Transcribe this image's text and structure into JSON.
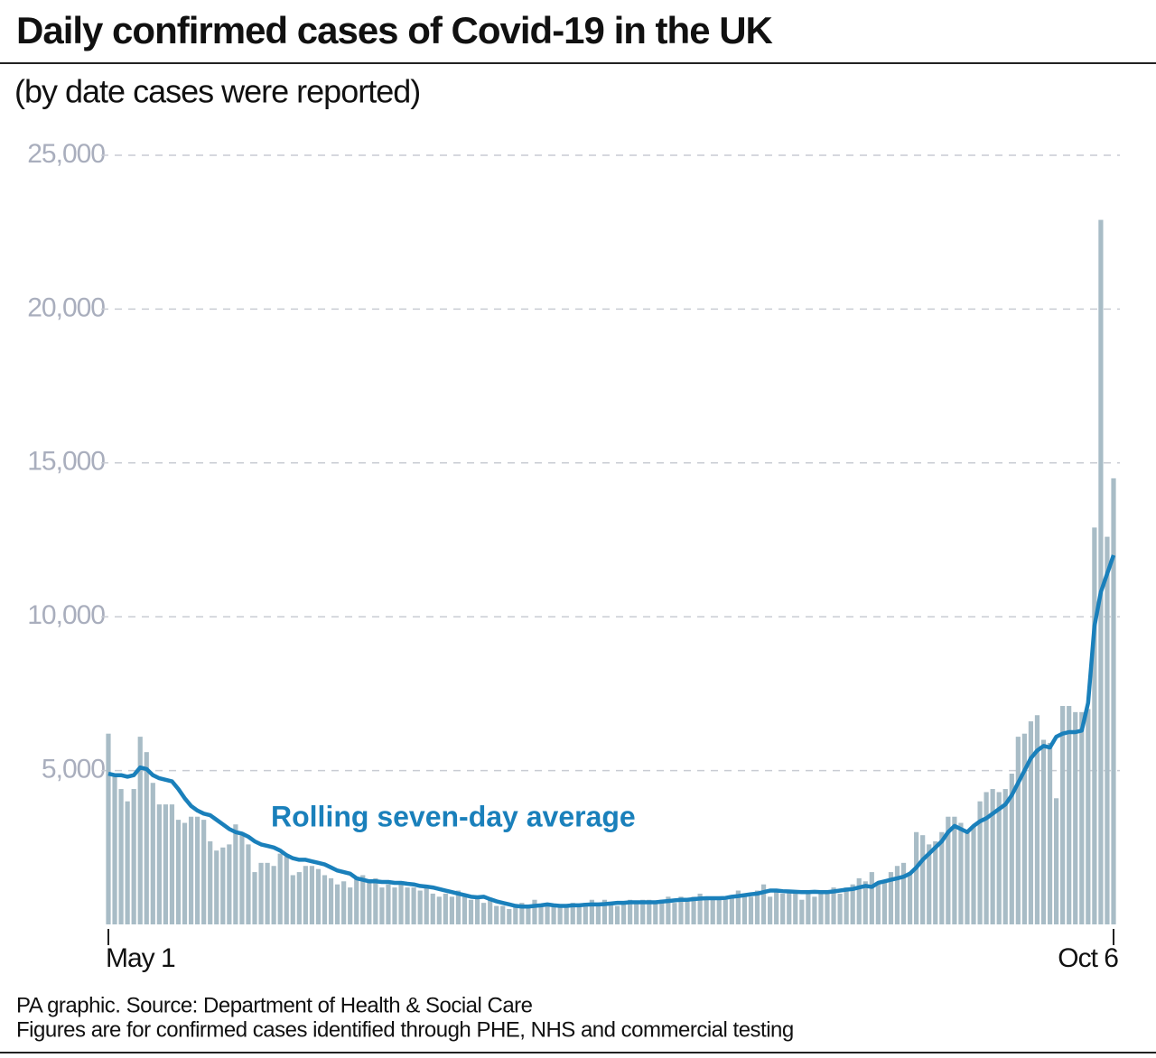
{
  "chart_data": {
    "type": "bar",
    "title": "Daily confirmed cases of Covid-19 in the UK",
    "subtitle": "(by date cases were reported)",
    "source": "PA graphic. Source: Department of Health & Social Care",
    "note": "Figures are for confirmed cases identified through PHE, NHS and commercial testing",
    "categories": [
      "May 1",
      null,
      null,
      null,
      null,
      null,
      null,
      null,
      null,
      null,
      null,
      null,
      null,
      null,
      null,
      null,
      null,
      null,
      null,
      null,
      null,
      null,
      null,
      null,
      null,
      null,
      null,
      null,
      null,
      null,
      null,
      null,
      null,
      null,
      null,
      null,
      null,
      null,
      null,
      null,
      null,
      null,
      null,
      null,
      null,
      null,
      null,
      null,
      null,
      null,
      null,
      null,
      null,
      null,
      null,
      null,
      null,
      null,
      null,
      null,
      null,
      null,
      null,
      null,
      null,
      null,
      null,
      null,
      null,
      null,
      null,
      null,
      null,
      null,
      null,
      null,
      null,
      null,
      null,
      null,
      null,
      null,
      null,
      null,
      null,
      null,
      null,
      null,
      null,
      null,
      null,
      null,
      null,
      null,
      null,
      null,
      null,
      null,
      null,
      null,
      null,
      null,
      null,
      null,
      null,
      null,
      null,
      null,
      null,
      null,
      null,
      null,
      null,
      null,
      null,
      null,
      null,
      null,
      null,
      null,
      null,
      null,
      null,
      null,
      null,
      null,
      null,
      null,
      null,
      null,
      null,
      null,
      null,
      null,
      null,
      null,
      null,
      null,
      null,
      null,
      null,
      null,
      null,
      null,
      null,
      null,
      null,
      null,
      null,
      null,
      null,
      null,
      null,
      null,
      null,
      null,
      null,
      null,
      "Oct 6"
    ],
    "series": [
      {
        "type": "bar",
        "color": "#a8bcc6",
        "values": [
          6200,
          4800,
          4400,
          4000,
          4400,
          6100,
          5600,
          4600,
          3900,
          3900,
          3900,
          3400,
          3300,
          3500,
          3500,
          3400,
          2700,
          2400,
          2500,
          2600,
          3250,
          2900,
          2600,
          1700,
          2000,
          2000,
          1900,
          2300,
          2200,
          1600,
          1700,
          1900,
          1900,
          1800,
          1600,
          1500,
          1300,
          1400,
          1200,
          1500,
          1600,
          1400,
          1500,
          1200,
          1300,
          1200,
          1300,
          1200,
          1200,
          1100,
          1200,
          1000,
          900,
          1000,
          900,
          1100,
          900,
          800,
          900,
          700,
          800,
          600,
          600,
          500,
          600,
          700,
          600,
          800,
          600,
          700,
          600,
          600,
          600,
          700,
          600,
          700,
          800,
          700,
          800,
          700,
          600,
          700,
          800,
          700,
          800,
          800,
          700,
          800,
          900,
          700,
          900,
          800,
          900,
          1000,
          900,
          900,
          900,
          800,
          900,
          1100,
          1000,
          900,
          1100,
          1300,
          900,
          1100,
          1000,
          1100,
          1000,
          800,
          1100,
          900,
          1000,
          1100,
          1200,
          1000,
          1200,
          1300,
          1500,
          1400,
          1700,
          1300,
          1400,
          1700,
          1900,
          2000,
          1700,
          3000,
          2900,
          2600,
          2700,
          3000,
          3500,
          3500,
          3300,
          3000,
          3200,
          4000,
          4300,
          4400,
          4300,
          4400,
          4900,
          6100,
          6200,
          6600,
          6800,
          6000,
          5900,
          4100,
          7100,
          7100,
          6900,
          6900,
          7000,
          12900,
          22900,
          12600,
          14500
        ]
      },
      {
        "name": "Rolling seven-day average",
        "type": "line",
        "color": "#1a80bb",
        "values": [
          4900,
          4850,
          4850,
          4800,
          4850,
          5100,
          5050,
          4850,
          4750,
          4700,
          4650,
          4400,
          4100,
          3850,
          3700,
          3600,
          3550,
          3400,
          3250,
          3100,
          3000,
          2950,
          2850,
          2700,
          2600,
          2550,
          2500,
          2400,
          2250,
          2150,
          2100,
          2100,
          2050,
          2000,
          1950,
          1850,
          1750,
          1700,
          1650,
          1500,
          1450,
          1400,
          1400,
          1380,
          1380,
          1350,
          1350,
          1320,
          1300,
          1250,
          1230,
          1200,
          1150,
          1100,
          1050,
          1000,
          950,
          900,
          880,
          900,
          820,
          750,
          700,
          650,
          600,
          580,
          580,
          600,
          620,
          650,
          620,
          600,
          600,
          620,
          620,
          640,
          650,
          650,
          660,
          680,
          700,
          700,
          720,
          720,
          720,
          720,
          720,
          740,
          760,
          780,
          800,
          800,
          820,
          840,
          850,
          850,
          850,
          860,
          900,
          920,
          950,
          980,
          1000,
          1050,
          1100,
          1100,
          1080,
          1070,
          1060,
          1050,
          1050,
          1060,
          1050,
          1050,
          1070,
          1100,
          1130,
          1150,
          1200,
          1250,
          1220,
          1350,
          1400,
          1450,
          1500,
          1550,
          1650,
          1850,
          2100,
          2300,
          2500,
          2700,
          3000,
          3200,
          3100,
          3000,
          3200,
          3350,
          3450,
          3600,
          3750,
          3900,
          4200,
          4600,
          5000,
          5400,
          5650,
          5800,
          5750,
          6100,
          6200,
          6250,
          6250,
          6300,
          7200,
          9700,
          10800,
          11400,
          12000
        ]
      }
    ],
    "ylim": [
      0,
      25000
    ],
    "yticks": [
      {
        "value": 5000,
        "label": "5,000"
      },
      {
        "value": 10000,
        "label": "10,000"
      },
      {
        "value": 15000,
        "label": "15,000"
      },
      {
        "value": 20000,
        "label": "20,000"
      },
      {
        "value": 25000,
        "label": "25,000"
      }
    ],
    "grid": true
  }
}
